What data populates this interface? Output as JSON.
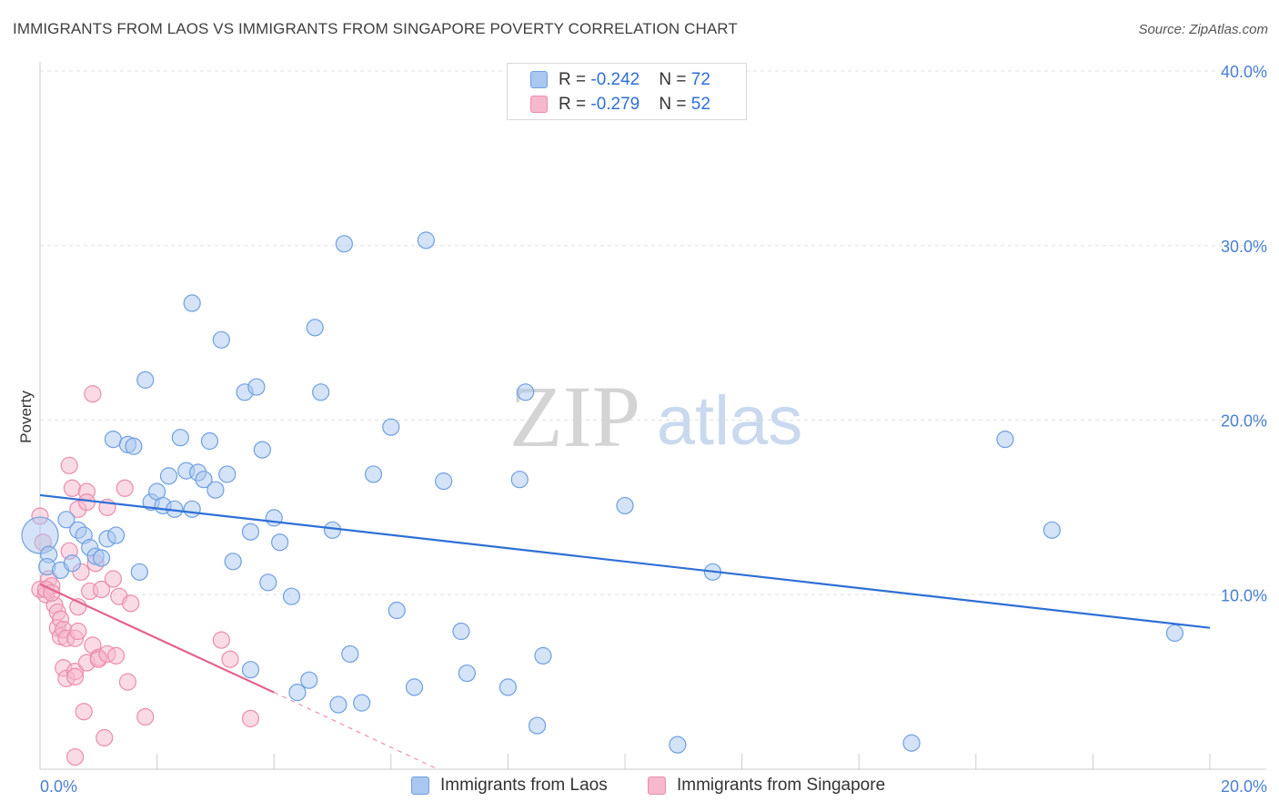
{
  "title": "IMMIGRANTS FROM LAOS VS IMMIGRANTS FROM SINGAPORE POVERTY CORRELATION CHART",
  "source": "Source: ZipAtlas.com",
  "watermark": {
    "zip": "ZIP",
    "atlas": "atlas"
  },
  "colors": {
    "laos_fill": "#a9c7f0",
    "laos_stroke": "#6f9fe0",
    "laos_line": "#2f6fd6",
    "sg_fill": "#f6b8cc",
    "sg_stroke": "#ea8cab",
    "sg_line": "#e5628c",
    "tick_text": "#4a7fd0",
    "grid": "#e0e0e0"
  },
  "legend": {
    "laos": {
      "r_label": "R = ",
      "r_value": "-0.242",
      "n_label": "N = ",
      "n_value": "72"
    },
    "singapore": {
      "r_label": "R = ",
      "r_value": "-0.279",
      "n_label": "N = ",
      "n_value": "52"
    }
  },
  "bottom_legend": {
    "laos": "Immigrants from Laos",
    "singapore": "Immigrants from Singapore"
  },
  "chart_data": {
    "type": "scatter",
    "title": "IMMIGRANTS FROM LAOS VS IMMIGRANTS FROM SINGAPORE POVERTY CORRELATION CHART",
    "xlabel": "",
    "ylabel": "Poverty",
    "xlim": [
      0,
      20
    ],
    "ylim": [
      0,
      40
    ],
    "x_tick_labels": [
      "0.0%",
      "20.0%"
    ],
    "y_ticks": [
      10,
      20,
      30,
      40
    ],
    "y_tick_labels": [
      "10.0%",
      "20.0%",
      "30.0%",
      "40.0%"
    ],
    "grid": true,
    "legend_position": "top-center",
    "series": [
      {
        "name": "Immigrants from Laos",
        "r": -0.242,
        "n": 72,
        "trend": {
          "x": [
            0,
            20
          ],
          "y": [
            15.7,
            8.1
          ]
        },
        "points": [
          [
            0.0,
            13.4,
            3
          ],
          [
            0.15,
            12.3,
            1
          ],
          [
            0.12,
            11.6,
            1
          ],
          [
            0.35,
            11.4,
            1
          ],
          [
            0.45,
            14.3,
            1
          ],
          [
            0.65,
            13.7,
            1
          ],
          [
            0.75,
            13.4,
            1
          ],
          [
            0.85,
            12.7,
            1
          ],
          [
            0.95,
            12.2,
            1
          ],
          [
            1.05,
            12.1,
            1
          ],
          [
            1.15,
            13.2,
            1
          ],
          [
            1.3,
            13.4,
            1
          ],
          [
            0.55,
            11.8,
            1
          ],
          [
            1.25,
            18.9,
            1
          ],
          [
            1.5,
            18.6,
            1
          ],
          [
            1.6,
            18.5,
            1
          ],
          [
            1.7,
            11.3,
            1
          ],
          [
            1.8,
            22.3,
            1
          ],
          [
            1.9,
            15.3,
            1
          ],
          [
            2.0,
            15.9,
            1
          ],
          [
            2.1,
            15.1,
            1
          ],
          [
            2.2,
            16.8,
            1
          ],
          [
            2.3,
            14.9,
            1
          ],
          [
            2.4,
            19.0,
            1
          ],
          [
            2.5,
            17.1,
            1
          ],
          [
            2.6,
            14.9,
            1
          ],
          [
            2.6,
            26.7,
            1
          ],
          [
            2.7,
            17.0,
            1
          ],
          [
            2.8,
            16.6,
            1
          ],
          [
            2.9,
            18.8,
            1
          ],
          [
            3.0,
            16.0,
            1
          ],
          [
            3.1,
            24.6,
            1
          ],
          [
            3.2,
            16.9,
            1
          ],
          [
            3.3,
            11.9,
            1
          ],
          [
            3.5,
            21.6,
            1
          ],
          [
            3.6,
            13.6,
            1
          ],
          [
            3.6,
            5.7,
            1
          ],
          [
            3.7,
            21.9,
            1
          ],
          [
            3.8,
            18.3,
            1
          ],
          [
            3.9,
            10.7,
            1
          ],
          [
            4.0,
            14.4,
            1
          ],
          [
            4.1,
            13.0,
            1
          ],
          [
            4.3,
            9.9,
            1
          ],
          [
            4.4,
            4.4,
            1
          ],
          [
            4.6,
            5.1,
            1
          ],
          [
            4.7,
            25.3,
            1
          ],
          [
            4.8,
            21.6,
            1
          ],
          [
            5.0,
            13.7,
            1
          ],
          [
            5.1,
            3.7,
            1
          ],
          [
            5.2,
            30.1,
            1
          ],
          [
            5.3,
            6.6,
            1
          ],
          [
            5.5,
            3.8,
            1
          ],
          [
            5.7,
            16.9,
            1
          ],
          [
            6.0,
            19.6,
            1
          ],
          [
            6.1,
            9.1,
            1
          ],
          [
            6.4,
            4.7,
            1
          ],
          [
            6.6,
            30.3,
            1
          ],
          [
            6.9,
            16.5,
            1
          ],
          [
            7.2,
            7.9,
            1
          ],
          [
            7.3,
            5.5,
            1
          ],
          [
            8.0,
            4.7,
            1
          ],
          [
            8.2,
            16.6,
            1
          ],
          [
            8.3,
            21.6,
            1
          ],
          [
            8.5,
            2.5,
            1
          ],
          [
            8.6,
            6.5,
            1
          ],
          [
            10.0,
            15.1,
            1
          ],
          [
            10.9,
            1.4,
            1
          ],
          [
            11.5,
            11.3,
            1
          ],
          [
            14.9,
            1.5,
            1
          ],
          [
            16.5,
            18.9,
            1
          ],
          [
            17.3,
            13.7,
            1
          ],
          [
            19.4,
            7.8,
            1
          ]
        ]
      },
      {
        "name": "Immigrants from Singapore",
        "r": -0.279,
        "n": 52,
        "trend": {
          "x": [
            0,
            4.0
          ],
          "y": [
            10.6,
            4.4
          ]
        },
        "trend_dashed": {
          "x": [
            4.0,
            6.8
          ],
          "y": [
            4.4,
            0.0
          ]
        },
        "points": [
          [
            0.0,
            14.5,
            1
          ],
          [
            0.05,
            13.0,
            1
          ],
          [
            0.0,
            10.3,
            1
          ],
          [
            0.1,
            10.0,
            1
          ],
          [
            0.15,
            10.9,
            1
          ],
          [
            0.2,
            10.5,
            1
          ],
          [
            0.25,
            9.4,
            1
          ],
          [
            0.3,
            9.0,
            1
          ],
          [
            0.3,
            8.1,
            1
          ],
          [
            0.35,
            8.6,
            1
          ],
          [
            0.35,
            7.6,
            1
          ],
          [
            0.4,
            8.0,
            1
          ],
          [
            0.4,
            5.8,
            1
          ],
          [
            0.45,
            7.5,
            1
          ],
          [
            0.45,
            5.2,
            1
          ],
          [
            0.5,
            17.4,
            1
          ],
          [
            0.5,
            12.5,
            1
          ],
          [
            0.55,
            16.1,
            1
          ],
          [
            0.6,
            5.6,
            1
          ],
          [
            0.6,
            5.3,
            1
          ],
          [
            0.6,
            7.5,
            1
          ],
          [
            0.6,
            0.7,
            1
          ],
          [
            0.65,
            14.9,
            1
          ],
          [
            0.65,
            7.9,
            1
          ],
          [
            0.65,
            9.3,
            1
          ],
          [
            0.7,
            11.3,
            1
          ],
          [
            0.75,
            3.3,
            1
          ],
          [
            0.8,
            6.1,
            1
          ],
          [
            0.8,
            15.9,
            1
          ],
          [
            0.8,
            15.3,
            1
          ],
          [
            0.85,
            10.2,
            1
          ],
          [
            0.9,
            7.1,
            1
          ],
          [
            0.9,
            21.5,
            1
          ],
          [
            0.95,
            11.8,
            1
          ],
          [
            1.0,
            6.4,
            1
          ],
          [
            1.0,
            6.3,
            1
          ],
          [
            1.05,
            10.3,
            1
          ],
          [
            1.1,
            1.8,
            1
          ],
          [
            1.15,
            6.6,
            1
          ],
          [
            1.15,
            15.0,
            1
          ],
          [
            1.25,
            10.9,
            1
          ],
          [
            1.3,
            6.5,
            1
          ],
          [
            1.35,
            9.9,
            1
          ],
          [
            1.45,
            16.1,
            1
          ],
          [
            1.5,
            5.0,
            1
          ],
          [
            1.55,
            9.5,
            1
          ],
          [
            1.8,
            3.0,
            1
          ],
          [
            3.1,
            7.4,
            1
          ],
          [
            3.25,
            6.3,
            1
          ],
          [
            3.6,
            2.9,
            1
          ],
          [
            0.1,
            10.3,
            1
          ],
          [
            0.2,
            10.1,
            1
          ]
        ]
      }
    ]
  }
}
